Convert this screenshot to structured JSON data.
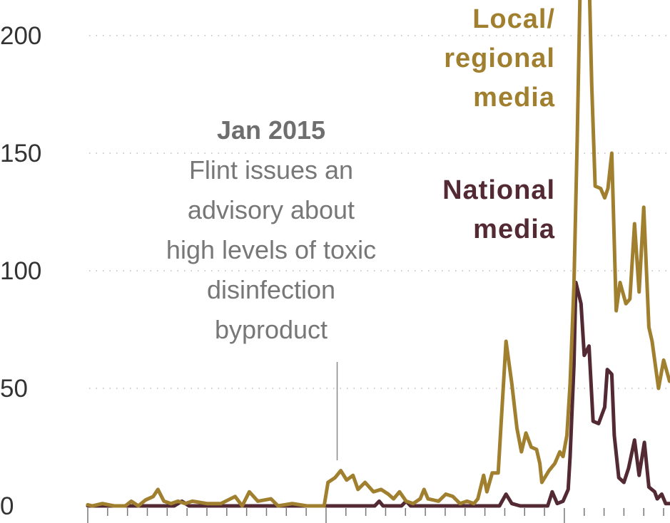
{
  "chart_data": {
    "type": "line",
    "title": "",
    "xlabel": "",
    "ylabel": "",
    "ylim": [
      0,
      215
    ],
    "yticks": [
      "0",
      "50",
      "100",
      "150",
      "200"
    ],
    "grid": "horizontal dotted",
    "x_axis": "monthly ticks, Jan 2014 to mid-2016, unlabeled",
    "series": [
      {
        "name": "Local/ regional media",
        "color": "#a07f2f",
        "points": [
          [
            "2014-01-01",
            0.5
          ],
          [
            "2014-01-08",
            0
          ],
          [
            "2014-01-24",
            1
          ],
          [
            "2014-02-10",
            0
          ],
          [
            "2014-02-26",
            0
          ],
          [
            "2014-03-07",
            2
          ],
          [
            "2014-03-18",
            0
          ],
          [
            "2014-03-29",
            2.5
          ],
          [
            "2014-04-10",
            4
          ],
          [
            "2014-04-17",
            7
          ],
          [
            "2014-04-26",
            2
          ],
          [
            "2014-05-07",
            1
          ],
          [
            "2014-05-18",
            2
          ],
          [
            "2014-05-29",
            1
          ],
          [
            "2014-06-09",
            2
          ],
          [
            "2014-07-01",
            1
          ],
          [
            "2014-07-23",
            1
          ],
          [
            "2014-08-14",
            4
          ],
          [
            "2014-08-25",
            0
          ],
          [
            "2014-09-05",
            6
          ],
          [
            "2014-09-18",
            2
          ],
          [
            "2014-10-08",
            3
          ],
          [
            "2014-10-19",
            0
          ],
          [
            "2014-11-10",
            1
          ],
          [
            "2014-12-02",
            0
          ],
          [
            "2014-12-29",
            0
          ],
          [
            "2015-01-04",
            10
          ],
          [
            "2015-01-15",
            12
          ],
          [
            "2015-01-24",
            15
          ],
          [
            "2015-02-02",
            11
          ],
          [
            "2015-02-11",
            13
          ],
          [
            "2015-02-18",
            7
          ],
          [
            "2015-02-28",
            10
          ],
          [
            "2015-03-13",
            6
          ],
          [
            "2015-03-25",
            7
          ],
          [
            "2015-04-05",
            5
          ],
          [
            "2015-04-13",
            3
          ],
          [
            "2015-04-22",
            6
          ],
          [
            "2015-05-02",
            2
          ],
          [
            "2015-05-13",
            1
          ],
          [
            "2015-05-24",
            3
          ],
          [
            "2015-05-30",
            7
          ],
          [
            "2015-06-05",
            3
          ],
          [
            "2015-06-21",
            2
          ],
          [
            "2015-07-02",
            5
          ],
          [
            "2015-07-13",
            4
          ],
          [
            "2015-07-24",
            1
          ],
          [
            "2015-08-04",
            2
          ],
          [
            "2015-08-15",
            1
          ],
          [
            "2015-08-21",
            3
          ],
          [
            "2015-08-30",
            13
          ],
          [
            "2015-09-04",
            6
          ],
          [
            "2015-09-12",
            14
          ],
          [
            "2015-09-21",
            14
          ],
          [
            "2015-09-25",
            33
          ],
          [
            "2015-10-03",
            70
          ],
          [
            "2015-10-12",
            52
          ],
          [
            "2015-10-20",
            33
          ],
          [
            "2015-10-27",
            23
          ],
          [
            "2015-11-03",
            31
          ],
          [
            "2015-11-11",
            25
          ],
          [
            "2015-11-19",
            24
          ],
          [
            "2015-11-24",
            18
          ],
          [
            "2015-11-27",
            10
          ],
          [
            "2015-12-08",
            15
          ],
          [
            "2015-12-17",
            18
          ],
          [
            "2015-12-25",
            23
          ],
          [
            "2015-12-30",
            21
          ],
          [
            "2016-01-05",
            30
          ],
          [
            "2016-01-10",
            52
          ],
          [
            "2016-01-16",
            94
          ],
          [
            "2016-01-21",
            155
          ],
          [
            "2016-01-27",
            240
          ],
          [
            "2016-02-07",
            240
          ],
          [
            "2016-02-12",
            179
          ],
          [
            "2016-02-17",
            136
          ],
          [
            "2016-02-25",
            135
          ],
          [
            "2016-03-02",
            131
          ],
          [
            "2016-03-07",
            135
          ],
          [
            "2016-03-13",
            150
          ],
          [
            "2016-03-20",
            83
          ],
          [
            "2016-03-26",
            95
          ],
          [
            "2016-04-04",
            86
          ],
          [
            "2016-04-10",
            88
          ],
          [
            "2016-04-17",
            120
          ],
          [
            "2016-04-24",
            91
          ],
          [
            "2016-05-01",
            127
          ],
          [
            "2016-05-09",
            76
          ],
          [
            "2016-05-14",
            70
          ],
          [
            "2016-05-20",
            58
          ],
          [
            "2016-05-24",
            50
          ],
          [
            "2016-06-01",
            62
          ],
          [
            "2016-06-10",
            53
          ]
        ]
      },
      {
        "name": "National media",
        "color": "#532a33",
        "points": [
          [
            "2014-01-01",
            0
          ],
          [
            "2014-05-12",
            0
          ],
          [
            "2014-05-24",
            2
          ],
          [
            "2014-06-04",
            0
          ],
          [
            "2015-03-15",
            0
          ],
          [
            "2015-03-22",
            2
          ],
          [
            "2015-03-28",
            0
          ],
          [
            "2015-04-25",
            0
          ],
          [
            "2015-05-02",
            2
          ],
          [
            "2015-05-09",
            0
          ],
          [
            "2015-09-23",
            0
          ],
          [
            "2015-10-03",
            5
          ],
          [
            "2015-10-12",
            1
          ],
          [
            "2015-10-25",
            0
          ],
          [
            "2015-12-06",
            0
          ],
          [
            "2015-12-13",
            6
          ],
          [
            "2015-12-21",
            1
          ],
          [
            "2015-12-30",
            2
          ],
          [
            "2016-01-07",
            7
          ],
          [
            "2016-01-10",
            21
          ],
          [
            "2016-01-16",
            60
          ],
          [
            "2016-01-19",
            95
          ],
          [
            "2016-01-27",
            86
          ],
          [
            "2016-02-01",
            64
          ],
          [
            "2016-02-08",
            68
          ],
          [
            "2016-02-14",
            36
          ],
          [
            "2016-02-22",
            35
          ],
          [
            "2016-03-02",
            42
          ],
          [
            "2016-03-06",
            58
          ],
          [
            "2016-03-13",
            56
          ],
          [
            "2016-03-17",
            30
          ],
          [
            "2016-03-24",
            12
          ],
          [
            "2016-04-01",
            10
          ],
          [
            "2016-04-08",
            16
          ],
          [
            "2016-04-17",
            28
          ],
          [
            "2016-04-24",
            13
          ],
          [
            "2016-05-02",
            27
          ],
          [
            "2016-05-09",
            8
          ],
          [
            "2016-05-18",
            6
          ],
          [
            "2016-05-22",
            3
          ],
          [
            "2016-05-29",
            5
          ],
          [
            "2016-06-04",
            1
          ],
          [
            "2016-06-10",
            1
          ]
        ]
      }
    ],
    "annotation": {
      "title": "Jan 2015",
      "lines": [
        "Flint issues an",
        "advisory about",
        "high levels of toxic",
        "disinfection",
        "byproduct"
      ],
      "date": "2015-01-15"
    },
    "labels": {
      "local": [
        "Local/",
        "regional",
        "media"
      ],
      "national": [
        "National",
        "media"
      ]
    }
  }
}
